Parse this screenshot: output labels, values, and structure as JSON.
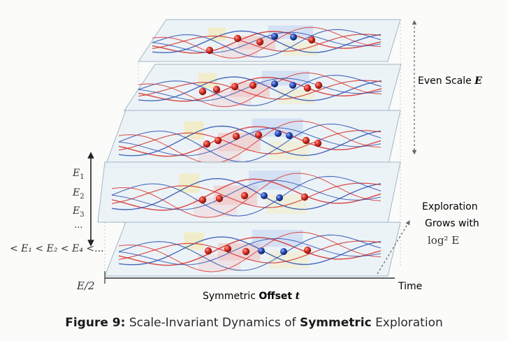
{
  "labels": {
    "even_scale": "Even Scale",
    "even_scale_symbol": "E",
    "e1": "E",
    "e1_sub": "1",
    "e2": "E",
    "e2_sub": "2",
    "e3": "E",
    "e3_sub": "3",
    "ellipsis": "...",
    "inequality": "< E₁ < E₂ < E₄ <...",
    "half_scale": "E/2",
    "xaxis_prefix": "Symmetric",
    "xaxis_bold": "Offset",
    "xaxis_var": "t",
    "time": "Time",
    "exploration_line1": "Exploration",
    "exploration_line2": "Grows with",
    "exploration_line3": "log² E"
  },
  "caption": {
    "prefix": "Figure 9:",
    "text1": "Scale-Invariant Dynamics of",
    "bold": "Symmetric",
    "text2": "Exploration"
  },
  "colors": {
    "red": "#d6302a",
    "blue": "#2a4fb0",
    "plane": "#e9f1f6",
    "plane_edge": "#9fb6c6"
  }
}
